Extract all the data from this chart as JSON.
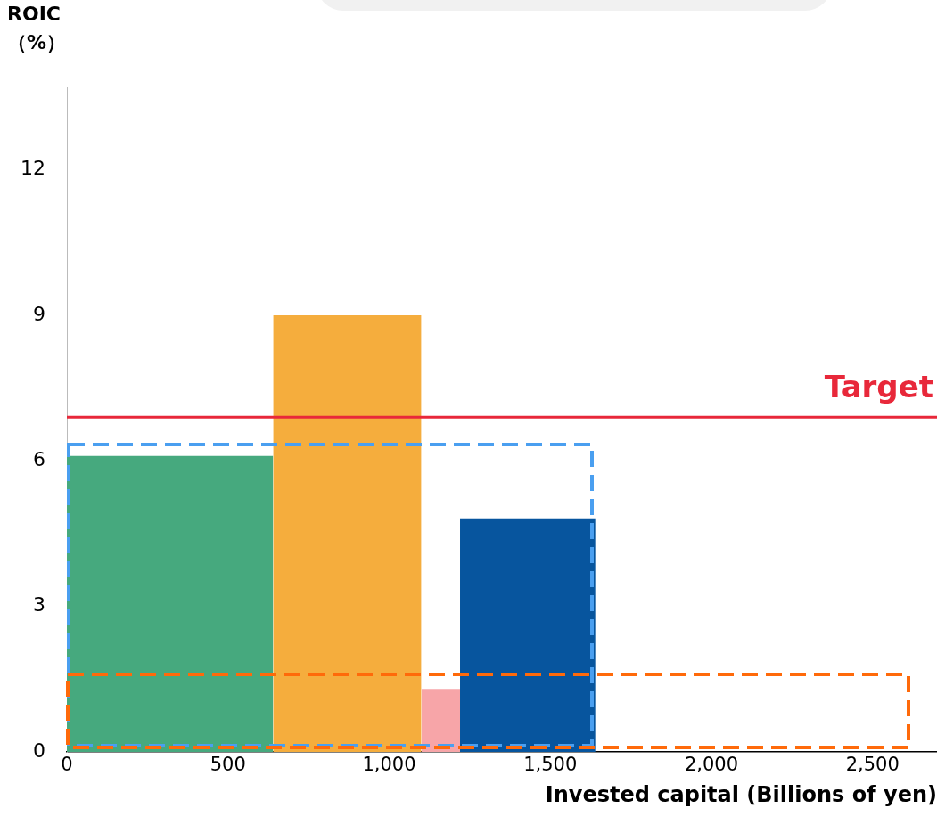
{
  "chart_data": {
    "type": "area",
    "xlabel": "Invested capital (Billions of yen)",
    "ylabel": "ROIC\n（%）",
    "series": [
      {
        "type": "area",
        "color": "#46a97e",
        "x": [
          0,
          640
        ],
        "values": [
          6.1,
          6.1
        ]
      },
      {
        "type": "area",
        "color": "#f5ad3d",
        "x": [
          640,
          1100
        ],
        "values": [
          9.0,
          9.0
        ]
      },
      {
        "type": "area",
        "color": "#f7a5a8",
        "x": [
          1100,
          1220
        ],
        "values": [
          1.3,
          1.3
        ]
      },
      {
        "type": "area",
        "color": "#07559e",
        "x": [
          1220,
          1640
        ],
        "values": [
          4.8,
          4.8
        ]
      }
    ],
    "ref_lines": [
      {
        "axis": "y",
        "value": 6.9,
        "label": "Target",
        "color": "#e8283a"
      }
    ],
    "xlim": [
      0,
      2700
    ],
    "xticks": [
      {
        "value": 0,
        "label": "0"
      },
      {
        "value": 500,
        "label": "500"
      },
      {
        "value": 1000,
        "label": "1,000"
      },
      {
        "value": 1500,
        "label": "1,500"
      },
      {
        "value": 2000,
        "label": "2,000"
      },
      {
        "value": 2500,
        "label": "2,500"
      }
    ],
    "ylim": [
      0,
      13.7
    ],
    "yticks": [
      0,
      3,
      6,
      9,
      12
    ],
    "grid": false,
    "legend": false
  }
}
